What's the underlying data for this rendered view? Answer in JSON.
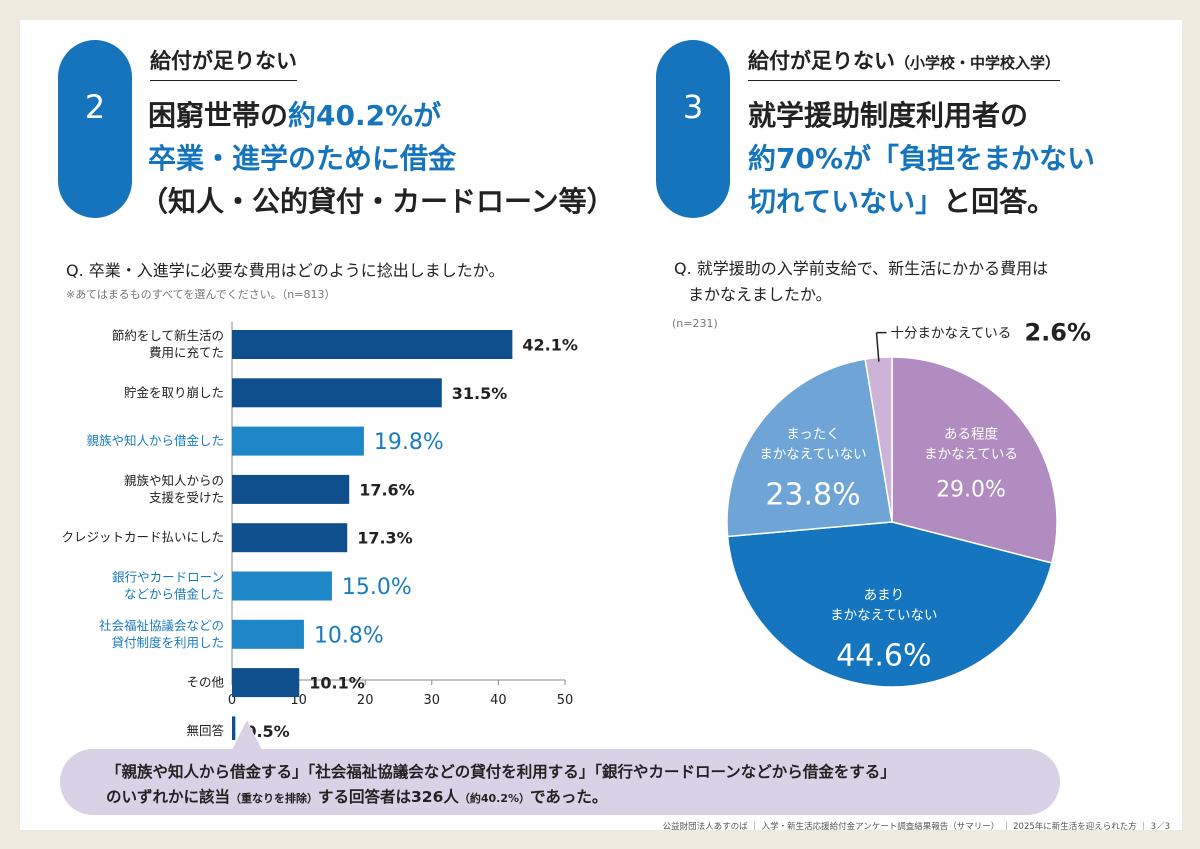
{
  "left": {
    "number": "2",
    "subtitle": "給付が足りない",
    "headline": {
      "l1a": "困窮世帯の",
      "l1b": "約40.2%が",
      "l2": "卒業・進学のために借金",
      "l3": "（知人・公的貸付・カードローン等）"
    },
    "question": "Q. 卒業・入進学に必要な費用はどのように捻出しましたか。",
    "note": "※あてはまるものすべてを選んでください。（n=813）"
  },
  "right": {
    "number": "3",
    "subtitle": "給付が足りない",
    "subtitle_small": "（小学校・中学校入学）",
    "headline": {
      "l1": "就学援助制度利用者の",
      "l2": "約70%が「負担をまかない",
      "l3a": "切れていない」",
      "l3b": "と回答。"
    },
    "question_l1": "Q. 就学援助の入学前支給で、新生活にかかる費用は",
    "question_l2": "まかなえましたか。",
    "note": "(n=231)"
  },
  "callout": {
    "line1": "「親族や知人から借金する」「社会福祉協議会などの貸付を利用する」「銀行やカードローンなどから借金をする」",
    "line2a": "のいずれかに該当",
    "line2b": "（重なりを排除）",
    "line2c": "する回答者は326人",
    "line2d": "（約40.2%）",
    "line2e": "であった。"
  },
  "footer": "公益財団法人あすのば ｜ 入学・新生活応援給付金アンケート調査結果報告（サマリー） ｜ 2025年に新生活を迎えられた方 ｜ 3／3",
  "colors": {
    "dark_bar": "#0f4f8e",
    "highlight_bar": "#1f86c8",
    "highlight_text": "#1a7cc0",
    "pie_purple": "#b08cc0",
    "pie_blue": "#1576bf",
    "pie_light_blue": "#6ea4d6",
    "pie_lavender": "#cbb4d8"
  },
  "chart_data": [
    {
      "type": "bar",
      "orientation": "horizontal",
      "categories": [
        [
          "節約をして新生活の",
          "費用に充てた"
        ],
        [
          "貯金を取り崩した"
        ],
        [
          "親族や知人から借金した"
        ],
        [
          "親族や知人からの",
          "支援を受けた"
        ],
        [
          "クレジットカード払いにした"
        ],
        [
          "銀行やカードローン",
          "などから借金した"
        ],
        [
          "社会福祉協議会などの",
          "貸付制度を利用した"
        ],
        [
          "その他"
        ],
        [
          "無回答"
        ]
      ],
      "values": [
        42.1,
        31.5,
        19.8,
        17.6,
        17.3,
        15.0,
        10.8,
        10.1,
        0.5
      ],
      "labels": [
        "42.1%",
        "31.5%",
        "19.8%",
        "17.6%",
        "17.3%",
        "15.0%",
        "10.8%",
        "10.1%",
        "0.5%"
      ],
      "highlighted": [
        false,
        false,
        true,
        false,
        false,
        true,
        true,
        false,
        false
      ],
      "xlim": [
        0,
        50
      ],
      "xticks": [
        "0",
        "10",
        "20",
        "30",
        "40",
        "50"
      ]
    },
    {
      "type": "pie",
      "slices": [
        {
          "label": [
            "ある程度",
            "まかなえている"
          ],
          "value": 29.0,
          "text": "29.0%",
          "color": "#b08cc0"
        },
        {
          "label": [
            "あまり",
            "まかなえていない"
          ],
          "value": 44.6,
          "text": "44.6%",
          "color": "#1576bf"
        },
        {
          "label": [
            "まったく",
            "まかなえていない"
          ],
          "value": 23.8,
          "text": "23.8%",
          "color": "#6ea4d6"
        },
        {
          "label": [
            "十分まかなえている"
          ],
          "value": 2.6,
          "text": "2.6%",
          "color": "#cbb4d8"
        }
      ]
    }
  ]
}
